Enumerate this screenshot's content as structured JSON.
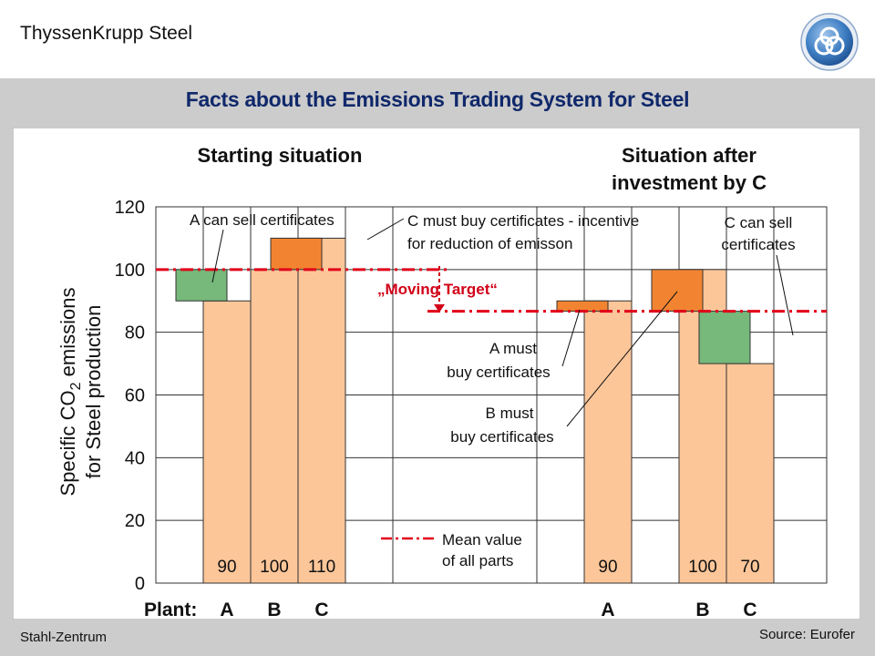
{
  "header": {
    "company": "ThyssenKrupp Steel",
    "logo": "thyssenkrupp-logo"
  },
  "title": "Facts about the Emissions Trading System for Steel",
  "footer": {
    "left": "Stahl-Zentrum",
    "right": "Source: Eurofer"
  },
  "colors": {
    "bar": "#fcc699",
    "sell": "#76b97a",
    "buy": "#f28431",
    "mean": "#e1001a",
    "title": "#10286b"
  },
  "chart_data": {
    "type": "bar",
    "ylabel_line1": "Specific CO",
    "ylabel_sub": "2",
    "ylabel_line1_end": " emissions",
    "ylabel_line2": "for Steel production",
    "ylim": [
      0,
      120
    ],
    "yticks": [
      "0",
      "20",
      "40",
      "60",
      "80",
      "100",
      "120"
    ],
    "grid": true,
    "plant_label": "Plant:",
    "sections": [
      {
        "title": "Starting situation",
        "mean": 100,
        "plants": [
          {
            "category": "A",
            "value": 90,
            "label": "90"
          },
          {
            "category": "B",
            "value": 100,
            "label": "100"
          },
          {
            "category": "C",
            "value": 110,
            "label": "110"
          }
        ]
      },
      {
        "title_line1": "Situation after",
        "title_line2": "investment by C",
        "mean": 86.7,
        "plants": [
          {
            "category": "A",
            "value": 90,
            "label": "90"
          },
          {
            "category": "B",
            "value": 100,
            "label": "100"
          },
          {
            "category": "C",
            "value": 70,
            "label": "70"
          }
        ]
      }
    ],
    "annotations": {
      "a_sell": "A can sell certificates",
      "c_buy_1": "C must buy certificates - incentive",
      "c_buy_2": "for reduction of emisson",
      "moving_target": "„Moving Target“",
      "a_buy_1": "A must",
      "a_buy_2": "buy certificates",
      "b_buy_1": "B must",
      "b_buy_2": "buy certificates",
      "c_sell_1": "C can sell",
      "c_sell_2": "certificates",
      "mean_1": "Mean value",
      "mean_2": "of all parts"
    }
  }
}
